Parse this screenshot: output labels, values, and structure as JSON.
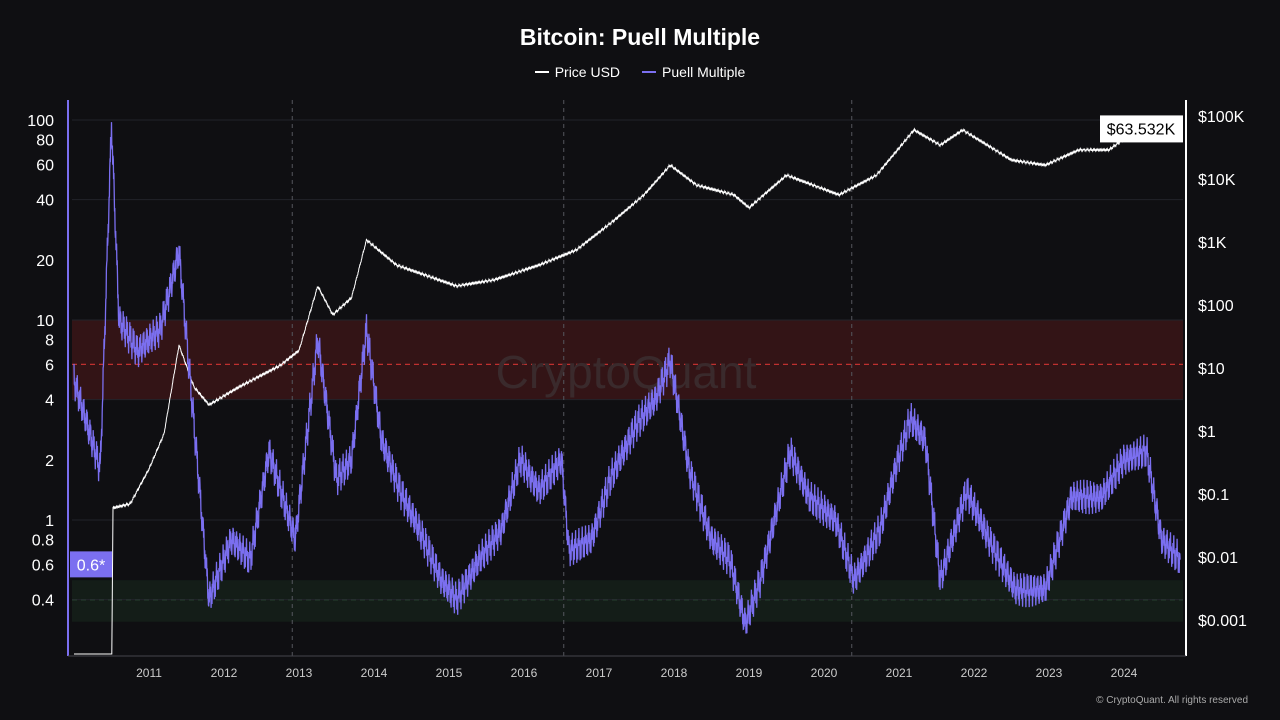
{
  "chart_data": {
    "type": "line",
    "title": "Bitcoin: Puell Multiple",
    "watermark": "CryptoQuant",
    "credit": "© CryptoQuant. All rights reserved",
    "legend_placement": "top-center",
    "grid": true,
    "x_ticks": [
      "2011",
      "2012",
      "2013",
      "2014",
      "2015",
      "2016",
      "2017",
      "2018",
      "2019",
      "2020",
      "2021",
      "2022",
      "2023",
      "2024"
    ],
    "xlim": [
      2010.0,
      2024.8
    ],
    "left_axis": {
      "scale": "log",
      "ylim": [
        0.25,
        170
      ],
      "ticks": [
        {
          "v": 0.4,
          "label": "0.4"
        },
        {
          "v": 0.6,
          "label": "0.6"
        },
        {
          "v": 0.8,
          "label": "0.8"
        },
        {
          "v": 1,
          "label": "1"
        },
        {
          "v": 2,
          "label": "2"
        },
        {
          "v": 4,
          "label": "4"
        },
        {
          "v": 6,
          "label": "6"
        },
        {
          "v": 8,
          "label": "8"
        },
        {
          "v": 10,
          "label": "10"
        },
        {
          "v": 20,
          "label": "20"
        },
        {
          "v": 40,
          "label": "40"
        },
        {
          "v": 60,
          "label": "60"
        },
        {
          "v": 80,
          "label": "80"
        },
        {
          "v": 100,
          "label": "100"
        }
      ],
      "current_label": "0.6*",
      "current_value": 0.6
    },
    "right_axis": {
      "scale": "log",
      "ticks": [
        {
          "v": 0.001,
          "label": "$0.001"
        },
        {
          "v": 0.01,
          "label": "$0.01"
        },
        {
          "v": 0.1,
          "label": "$0.1"
        },
        {
          "v": 1,
          "label": "$1"
        },
        {
          "v": 10,
          "label": "$10"
        },
        {
          "v": 100,
          "label": "$100"
        },
        {
          "v": 1000,
          "label": "$1K"
        },
        {
          "v": 10000,
          "label": "$10K"
        },
        {
          "v": 100000,
          "label": "$100K"
        }
      ],
      "current_label": "$63.532K",
      "current_value": 63532
    },
    "bands": [
      {
        "from": 4,
        "to": 10,
        "color": "#3a1517",
        "line": 6,
        "line_color": "#c0302f"
      },
      {
        "from": 0.31,
        "to": 0.5,
        "color": "#15201a",
        "line": 0.4,
        "line_color": "#3f7a4a"
      }
    ],
    "halvings": [
      2012.91,
      2016.53,
      2020.37
    ],
    "series": [
      {
        "name": "Price USD",
        "color": "#ffffff",
        "axis": "right",
        "points": [
          [
            2010.0,
            7e-05
          ],
          [
            2010.5,
            7e-05
          ],
          [
            2010.52,
            0.06
          ],
          [
            2010.75,
            0.07
          ],
          [
            2011.0,
            0.25
          ],
          [
            2011.2,
            0.9
          ],
          [
            2011.4,
            23
          ],
          [
            2011.6,
            5
          ],
          [
            2011.8,
            2.6
          ],
          [
            2012.2,
            5
          ],
          [
            2012.75,
            11
          ],
          [
            2013.0,
            19
          ],
          [
            2013.25,
            200
          ],
          [
            2013.45,
            70
          ],
          [
            2013.7,
            130
          ],
          [
            2013.9,
            1080
          ],
          [
            2014.3,
            430
          ],
          [
            2015.1,
            200
          ],
          [
            2015.6,
            250
          ],
          [
            2016.2,
            430
          ],
          [
            2016.7,
            750
          ],
          [
            2017.2,
            2200
          ],
          [
            2017.6,
            5600
          ],
          [
            2017.95,
            16600
          ],
          [
            2018.3,
            8000
          ],
          [
            2018.8,
            5600
          ],
          [
            2019.0,
            3500
          ],
          [
            2019.5,
            11500
          ],
          [
            2020.2,
            5600
          ],
          [
            2020.7,
            11500
          ],
          [
            2021.2,
            60000
          ],
          [
            2021.55,
            34500
          ],
          [
            2021.85,
            60000
          ],
          [
            2022.5,
            20000
          ],
          [
            2022.95,
            16600
          ],
          [
            2023.4,
            29000
          ],
          [
            2023.8,
            29000
          ],
          [
            2024.2,
            65000
          ],
          [
            2024.75,
            60000
          ]
        ]
      },
      {
        "name": "Puell Multiple",
        "color": "#7b6ff0",
        "axis": "left",
        "points": [
          [
            2010.0,
            5
          ],
          [
            2010.35,
            1.8
          ],
          [
            2010.5,
            95
          ],
          [
            2010.6,
            10
          ],
          [
            2010.85,
            7
          ],
          [
            2011.15,
            9
          ],
          [
            2011.4,
            22
          ],
          [
            2011.6,
            3
          ],
          [
            2011.8,
            0.4
          ],
          [
            2012.1,
            0.8
          ],
          [
            2012.35,
            0.63
          ],
          [
            2012.6,
            2.2
          ],
          [
            2012.95,
            0.8
          ],
          [
            2013.25,
            8
          ],
          [
            2013.5,
            1.6
          ],
          [
            2013.7,
            2
          ],
          [
            2013.9,
            9
          ],
          [
            2014.1,
            2.5
          ],
          [
            2014.35,
            1.4
          ],
          [
            2014.6,
            0.9
          ],
          [
            2014.9,
            0.5
          ],
          [
            2015.1,
            0.4
          ],
          [
            2015.4,
            0.63
          ],
          [
            2015.7,
            0.9
          ],
          [
            2015.95,
            2
          ],
          [
            2016.2,
            1.4
          ],
          [
            2016.5,
            2
          ],
          [
            2016.6,
            0.7
          ],
          [
            2016.9,
            0.8
          ],
          [
            2017.15,
            1.6
          ],
          [
            2017.5,
            3
          ],
          [
            2017.75,
            4
          ],
          [
            2017.95,
            6.3
          ],
          [
            2018.2,
            1.8
          ],
          [
            2018.5,
            0.8
          ],
          [
            2018.75,
            0.63
          ],
          [
            2018.95,
            0.3
          ],
          [
            2019.15,
            0.5
          ],
          [
            2019.55,
            2.2
          ],
          [
            2019.8,
            1.3
          ],
          [
            2020.15,
            1
          ],
          [
            2020.4,
            0.5
          ],
          [
            2020.75,
            0.9
          ],
          [
            2020.95,
            1.8
          ],
          [
            2021.15,
            3.2
          ],
          [
            2021.35,
            2.5
          ],
          [
            2021.55,
            0.5
          ],
          [
            2021.9,
            1.4
          ],
          [
            2022.2,
            0.8
          ],
          [
            2022.55,
            0.45
          ],
          [
            2022.95,
            0.45
          ],
          [
            2023.3,
            1.3
          ],
          [
            2023.7,
            1.3
          ],
          [
            2024.0,
            2
          ],
          [
            2024.3,
            2.2
          ],
          [
            2024.5,
            0.8
          ],
          [
            2024.75,
            0.63
          ]
        ]
      }
    ]
  }
}
